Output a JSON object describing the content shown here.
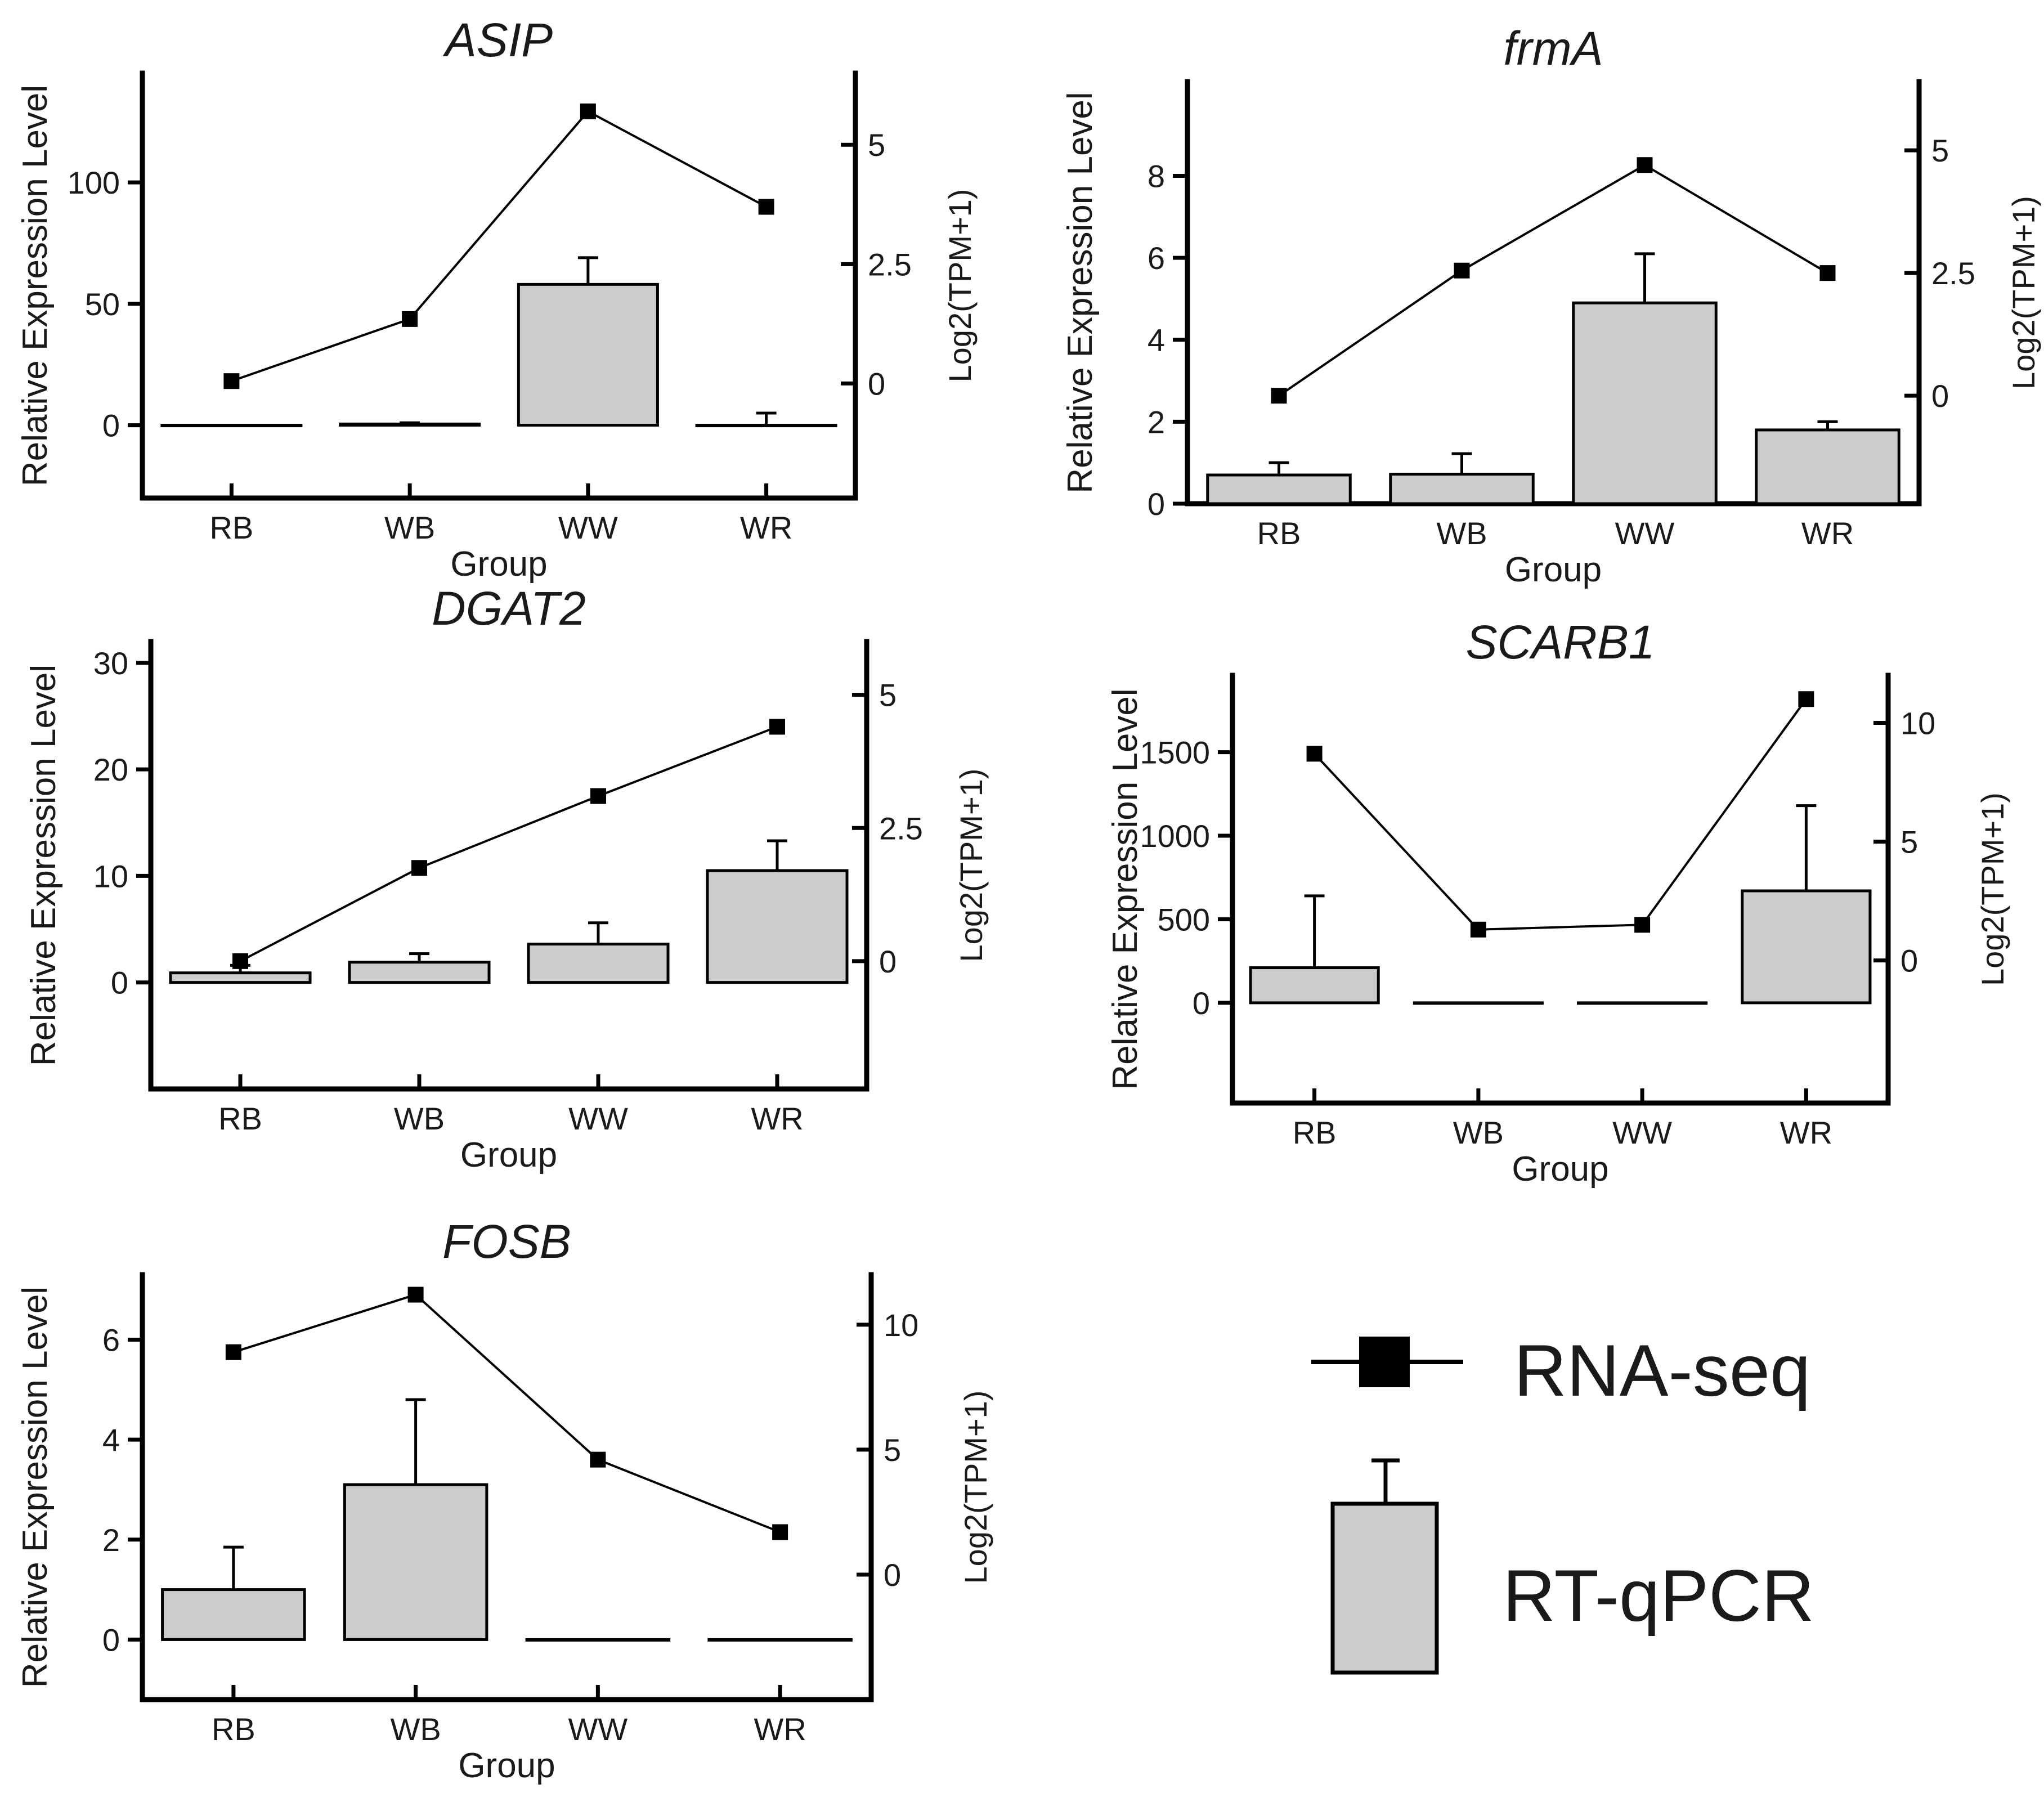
{
  "chart_data": [
    {
      "type": "bar+line",
      "title": "ASIP",
      "xlabel": "Group",
      "ylabel": "Relative Expression Level",
      "y2label": "Log2(TPM+1)",
      "categories": [
        "RB",
        "WB",
        "WW",
        "WR"
      ],
      "ylim": [
        -30,
        145
      ],
      "yticks": [
        0,
        50,
        100
      ],
      "y2lim": [
        -2.4,
        6.5
      ],
      "y2ticks": [
        0,
        2.5,
        5
      ],
      "y2tick_labels": [
        "0",
        "2.5",
        "5"
      ],
      "series": [
        {
          "values": [
            0,
            0.5,
            58,
            0
          ],
          "errors": [
            0,
            0.5,
            11,
            5
          ]
        },
        {
          "values": [
            0.05,
            1.35,
            5.7,
            3.7
          ]
        }
      ]
    },
    {
      "type": "bar+line",
      "title": "frmA",
      "xlabel": "Group",
      "ylabel": "Relative Expression Level",
      "y2label": "Log2(TPM+1)",
      "categories": [
        "RB",
        "WB",
        "WW",
        "WR"
      ],
      "ylim": [
        0,
        10.3
      ],
      "yticks": [
        0,
        2,
        4,
        6,
        8
      ],
      "y2lim": [
        -2.2,
        6.4
      ],
      "y2ticks": [
        0,
        2.5,
        5
      ],
      "y2tick_labels": [
        "0",
        "2.5",
        "5"
      ],
      "series": [
        {
          "values": [
            0.7,
            0.72,
            4.9,
            1.8
          ],
          "errors": [
            0.3,
            0.5,
            1.2,
            0.2
          ]
        },
        {
          "values": [
            0,
            2.55,
            4.7,
            2.5
          ]
        }
      ]
    },
    {
      "type": "bar+line",
      "title": "DGAT2",
      "xlabel": "Group",
      "ylabel": "Relative Expression Level",
      "y2label": "Log2(TPM+1)",
      "categories": [
        "RB",
        "WB",
        "WW",
        "WR"
      ],
      "ylim": [
        -10,
        32
      ],
      "yticks": [
        0,
        10,
        20,
        30
      ],
      "y2lim": [
        -2.4,
        6.0
      ],
      "y2ticks": [
        0,
        2.5,
        5
      ],
      "y2tick_labels": [
        "0",
        "2.5",
        "5"
      ],
      "series": [
        {
          "values": [
            0.9,
            1.9,
            3.6,
            10.5
          ],
          "errors": [
            0.7,
            0.8,
            2.0,
            2.8
          ]
        },
        {
          "values": [
            0,
            1.75,
            3.1,
            4.4
          ]
        }
      ]
    },
    {
      "type": "bar+line",
      "title": "SCARB1",
      "xlabel": "Group",
      "ylabel": "Relative Expression Level",
      "y2label": "Log2(TPM+1)",
      "categories": [
        "RB",
        "WB",
        "WW",
        "WR"
      ],
      "ylim": [
        -600,
        1960
      ],
      "yticks": [
        0,
        500,
        1000,
        1500
      ],
      "y2lim": [
        -6,
        12
      ],
      "y2ticks": [
        0,
        5,
        10
      ],
      "y2tick_labels": [
        "0",
        "5",
        "10"
      ],
      "series": [
        {
          "values": [
            210,
            0,
            0,
            670
          ],
          "errors": [
            430,
            0,
            0,
            510
          ]
        },
        {
          "values": [
            8.7,
            1.3,
            1.5,
            11.0
          ]
        }
      ]
    },
    {
      "type": "bar+line",
      "title": "FOSB",
      "xlabel": "Group",
      "ylabel": "Relative Expression Level",
      "y2label": "Log2(TPM+1)",
      "categories": [
        "RB",
        "WB",
        "WW",
        "WR"
      ],
      "ylim": [
        -1.2,
        7.3
      ],
      "yticks": [
        0,
        2,
        4,
        6
      ],
      "y2lim": [
        -5,
        12
      ],
      "y2ticks": [
        0,
        5,
        10
      ],
      "y2tick_labels": [
        "0",
        "5",
        "10"
      ],
      "series": [
        {
          "values": [
            1.0,
            3.1,
            0,
            0
          ],
          "errors": [
            0.85,
            1.7,
            0,
            0
          ]
        },
        {
          "values": [
            8.9,
            11.2,
            4.6,
            1.7
          ]
        }
      ]
    }
  ],
  "legend": {
    "placement": "bottom-right",
    "entries": [
      "RNA-seq",
      "RT-qPCR"
    ]
  }
}
